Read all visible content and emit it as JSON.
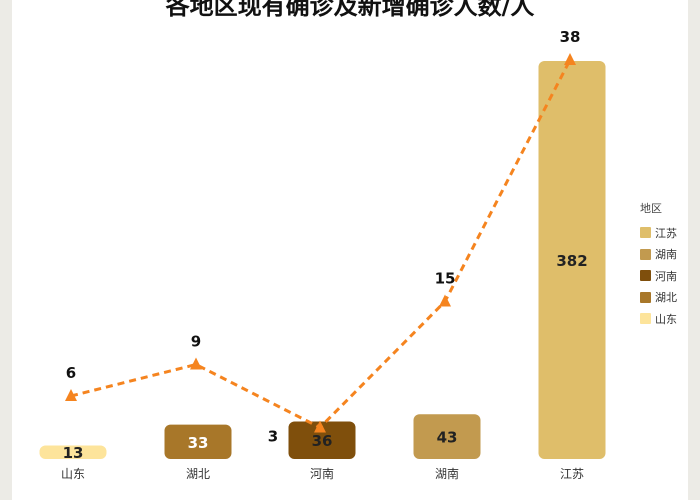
{
  "chart_data": {
    "type": "bar",
    "title": "各地区现有确诊及新增确诊人数/人",
    "categories": [
      "山东",
      "湖北",
      "河南",
      "湖南",
      "江苏"
    ],
    "series": [
      {
        "values": [
          13,
          33,
          36,
          43,
          382
        ],
        "colors": [
          "#fde49b",
          "#a87729",
          "#7f4f0c",
          "#c29a4f",
          "#dfbe6a"
        ]
      },
      {
        "type": "line",
        "values": [
          6,
          9,
          3,
          15,
          38
        ],
        "color": "#f5841f",
        "style": "dashed",
        "marker": "triangle"
      }
    ],
    "legend": {
      "title": "地区",
      "position": "right",
      "items": [
        {
          "label": "江苏",
          "color": "#dfbe6a"
        },
        {
          "label": "湖南",
          "color": "#c29a4f"
        },
        {
          "label": "河南",
          "color": "#7f4f0c"
        },
        {
          "label": "湖北",
          "color": "#a87729"
        },
        {
          "label": "山东",
          "color": "#fde49b"
        }
      ]
    },
    "xlabel": "",
    "bar_labels": [
      "13",
      "33",
      "36",
      "43",
      "382"
    ],
    "line_labels": [
      "6",
      "9",
      "3",
      "15",
      "38"
    ],
    "bar_ylim": [
      0,
      382
    ],
    "line_ylim": [
      0,
      38
    ],
    "grid": false,
    "bar_label_colors": [
      "#222222",
      "#ffffff",
      "#222222",
      "#222222",
      "#222222"
    ]
  }
}
